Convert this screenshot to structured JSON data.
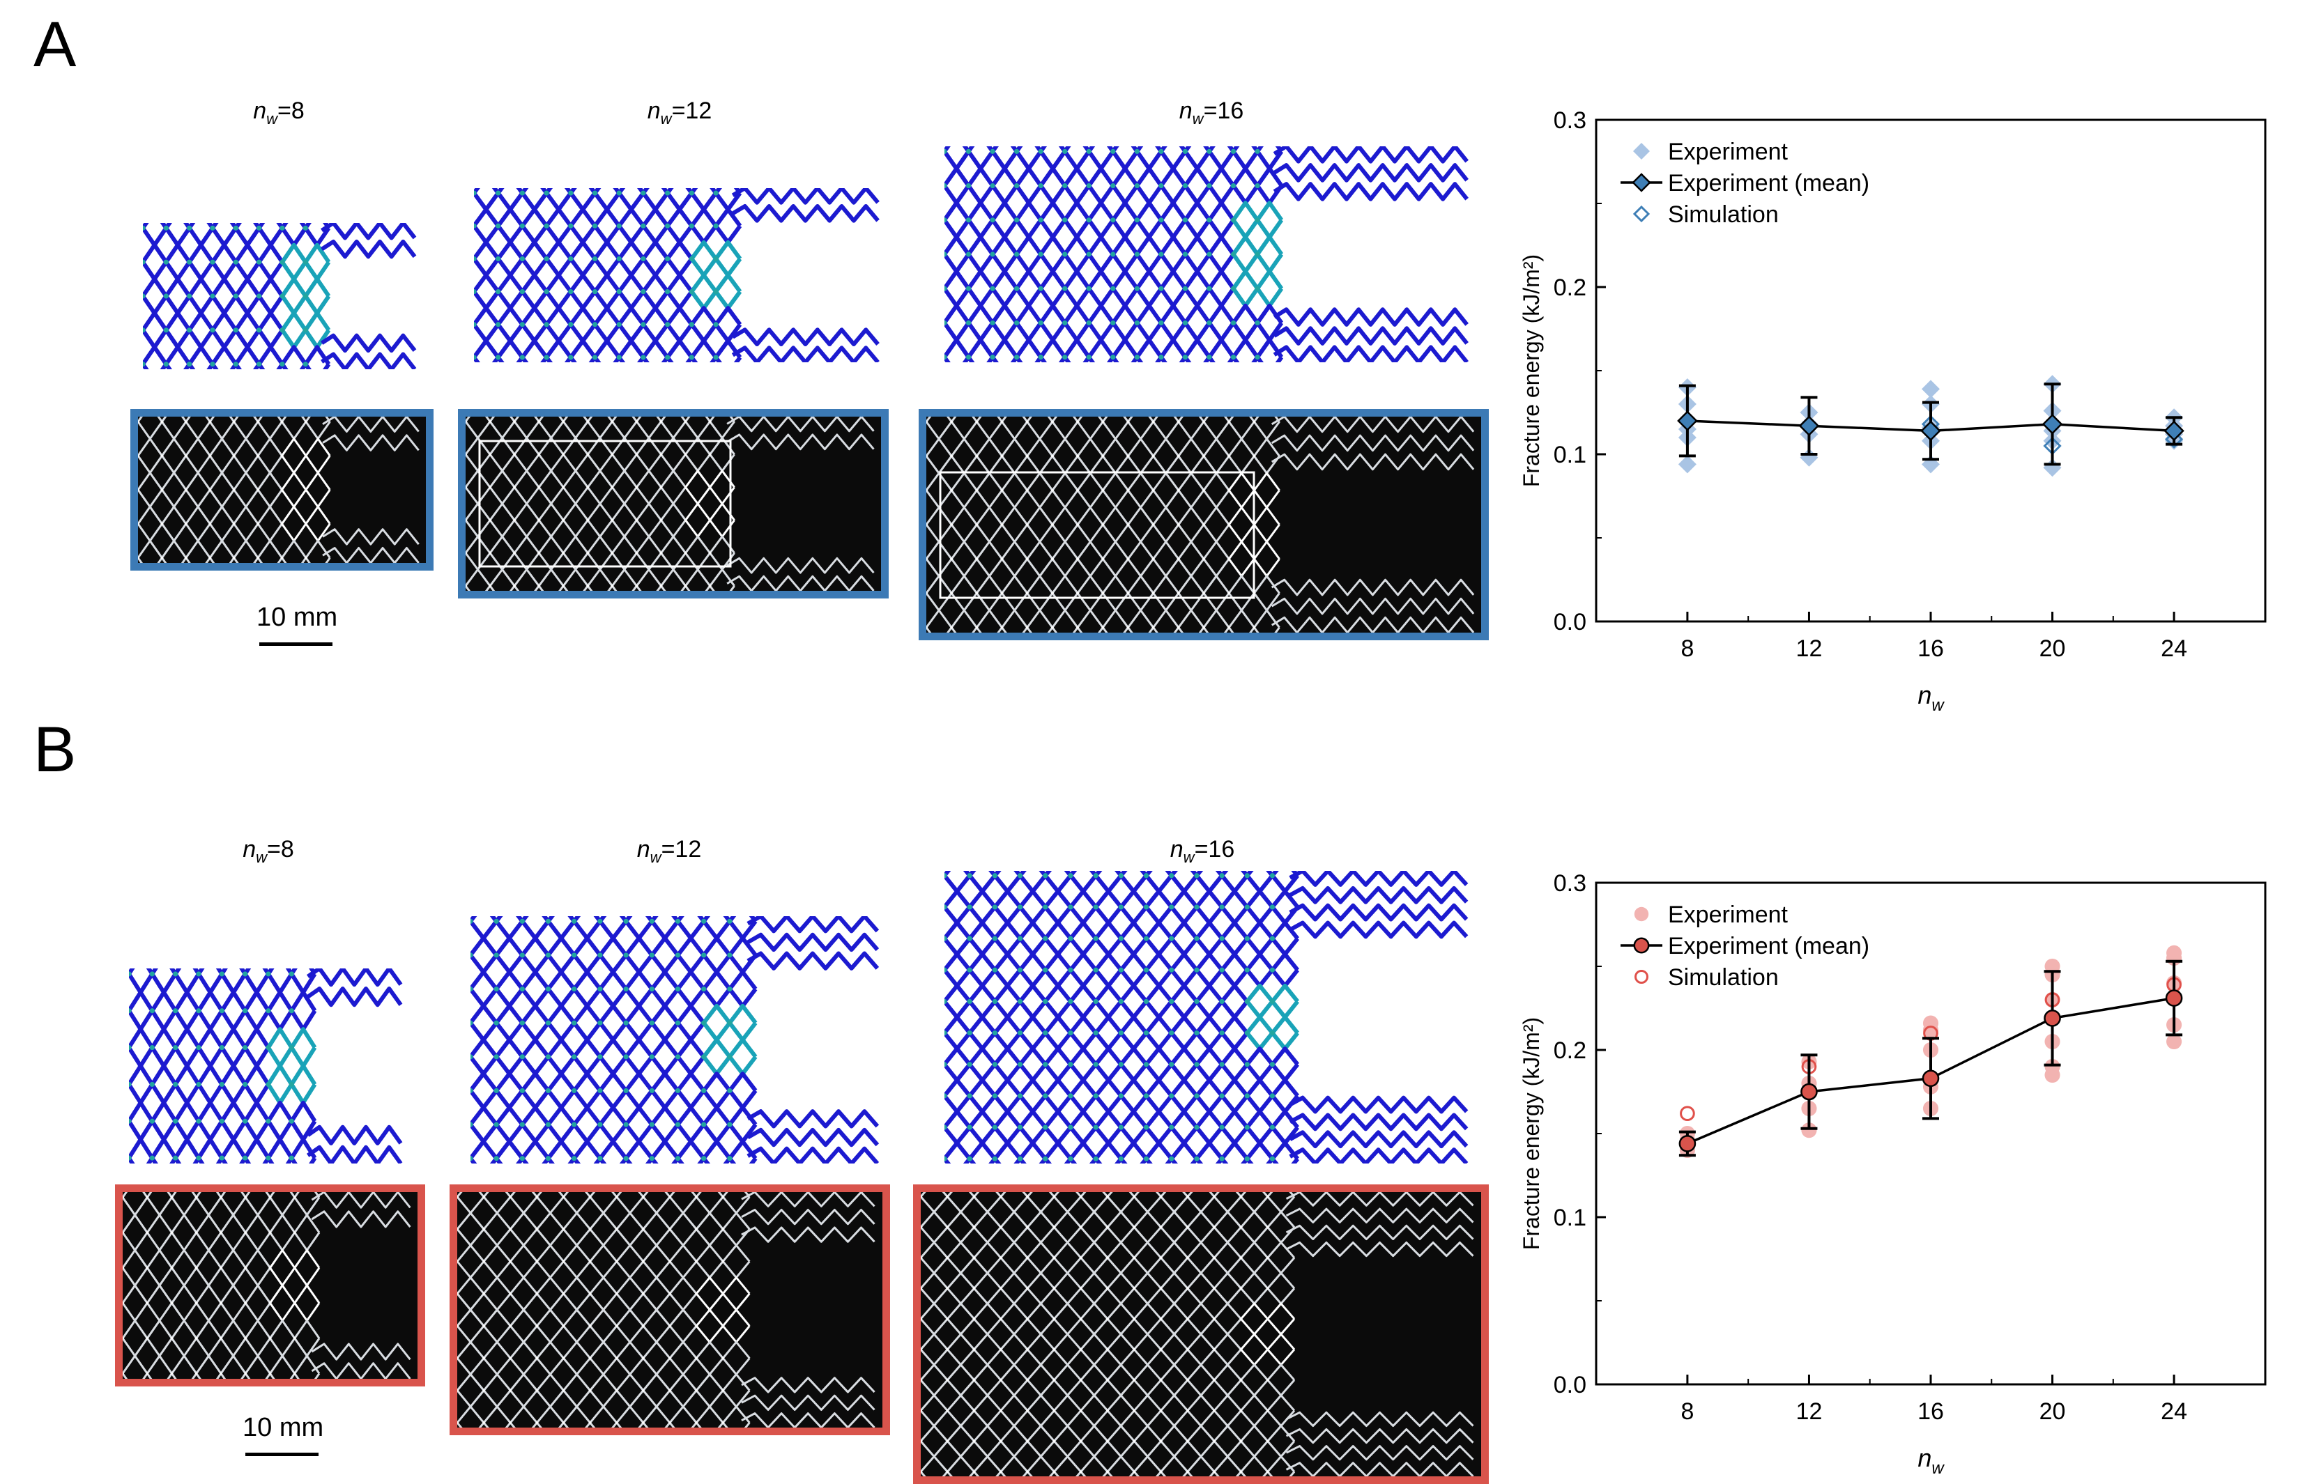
{
  "panels": {
    "A": {
      "letter": "A",
      "nw_labels": [
        "8",
        "12",
        "16"
      ],
      "scale_text": "10 mm",
      "frame_color": "#3c7ab5"
    },
    "B": {
      "letter": "B",
      "nw_labels": [
        "8",
        "12",
        "16"
      ],
      "scale_text": "10 mm",
      "frame_color": "#d9544c"
    }
  },
  "chart_data": [
    {
      "type": "scatter",
      "xlabel": "n_w",
      "ylabel": "Fracture energy (kJ/m²)",
      "xlim": [
        5,
        27
      ],
      "ylim": [
        0,
        0.3
      ],
      "xticks": [
        8,
        12,
        16,
        20,
        24
      ],
      "yticks": [
        "0.0",
        "0.1",
        "0.2",
        "0.3"
      ],
      "legend_position": "top-left",
      "legend": [
        "Experiment",
        "Experiment (mean)",
        "Simulation"
      ],
      "marker": "diamond",
      "colors": {
        "experiment": "#a9c4e4",
        "mean_fill": "#3f7fb6",
        "simulation": "#3f7fb6"
      },
      "x": [
        8,
        12,
        16,
        20,
        24
      ],
      "mean": [
        0.12,
        0.117,
        0.114,
        0.118,
        0.114
      ],
      "err": [
        0.021,
        0.017,
        0.017,
        0.024,
        0.008
      ],
      "experiment": [
        [
          0.094,
          0.11,
          0.115,
          0.13,
          0.14
        ],
        [
          0.098,
          0.112,
          0.118,
          0.125
        ],
        [
          0.094,
          0.108,
          0.116,
          0.13,
          0.139
        ],
        [
          0.092,
          0.108,
          0.114,
          0.126,
          0.142
        ],
        [
          0.108,
          0.112,
          0.117,
          0.122
        ]
      ],
      "simulation": [
        0.12,
        0.117,
        0.118,
        0.105,
        0.109
      ]
    },
    {
      "type": "line",
      "xlabel": "n_w",
      "ylabel": "Fracture energy (kJ/m²)",
      "xlim": [
        5,
        27
      ],
      "ylim": [
        0,
        0.3
      ],
      "xticks": [
        8,
        12,
        16,
        20,
        24
      ],
      "yticks": [
        "0.0",
        "0.1",
        "0.2",
        "0.3"
      ],
      "legend_position": "top-left",
      "legend": [
        "Experiment",
        "Experiment (mean)",
        "Simulation"
      ],
      "marker": "circle",
      "colors": {
        "experiment": "#f2b3b1",
        "mean_fill": "#d9544c",
        "simulation": "#e0504a"
      },
      "x": [
        8,
        12,
        16,
        20,
        24
      ],
      "mean": [
        0.144,
        0.175,
        0.183,
        0.219,
        0.231
      ],
      "err": [
        0.007,
        0.022,
        0.024,
        0.028,
        0.022
      ],
      "experiment": [
        [
          0.14,
          0.146,
          0.15
        ],
        [
          0.152,
          0.165,
          0.18,
          0.193
        ],
        [
          0.165,
          0.178,
          0.2,
          0.212,
          0.216
        ],
        [
          0.185,
          0.19,
          0.205,
          0.23,
          0.245,
          0.25
        ],
        [
          0.205,
          0.215,
          0.24,
          0.255,
          0.258
        ]
      ],
      "simulation": [
        0.162,
        0.19,
        0.21,
        0.23,
        0.239
      ]
    }
  ]
}
